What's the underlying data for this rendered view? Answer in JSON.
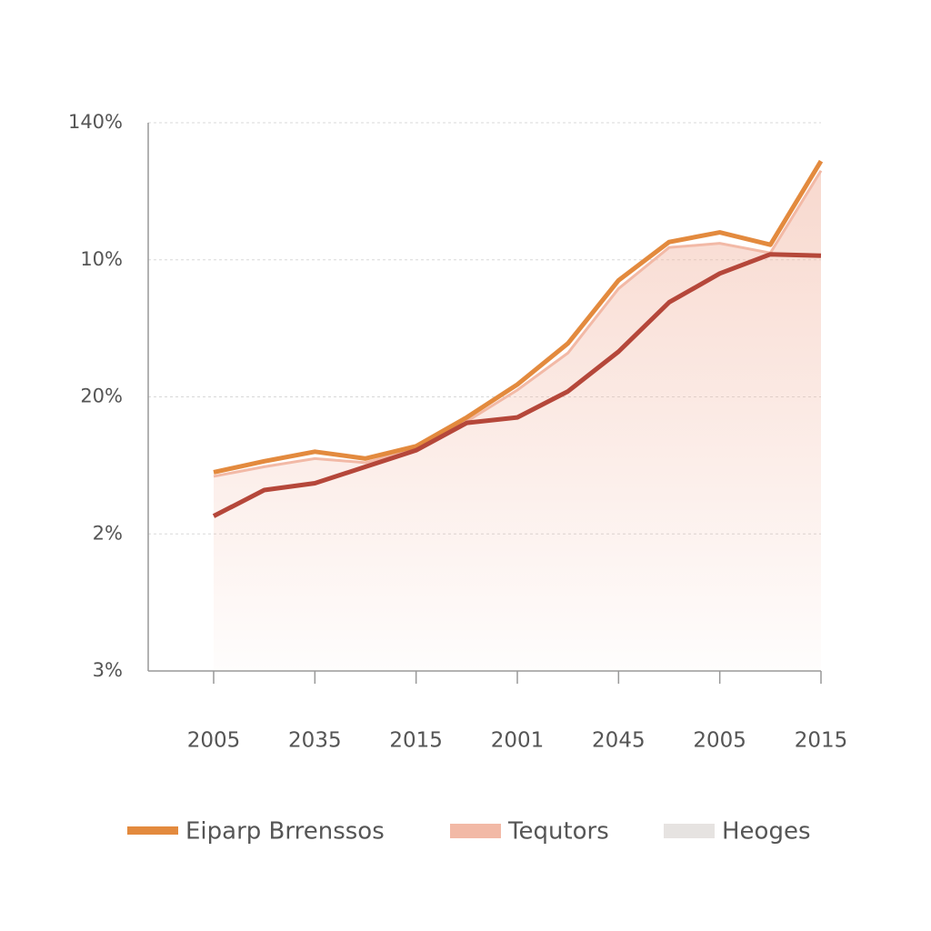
{
  "chart_data": {
    "type": "line",
    "categories": [
      "2005",
      null,
      "2035",
      null,
      "2015",
      null,
      "2001",
      null,
      "2045",
      null,
      "2005",
      null,
      "2015"
    ],
    "series": [
      {
        "name": "Eiparp Brrenssos",
        "color": "#e38a3e",
        "style": "line",
        "values": [
          1.45,
          1.53,
          1.6,
          1.55,
          1.64,
          1.85,
          2.09,
          2.39,
          2.85,
          3.13,
          3.2,
          3.11,
          3.72
        ]
      },
      {
        "name": "Tequtors",
        "color": "#f2b9a6",
        "style": "area",
        "values": [
          1.42,
          1.49,
          1.55,
          1.52,
          1.62,
          1.82,
          2.05,
          2.32,
          2.79,
          3.09,
          3.12,
          3.05,
          3.65
        ]
      },
      {
        "name": "Heoges",
        "color": "#b5473a",
        "legend_color": "#e6e3e1",
        "style": "line",
        "values": [
          1.13,
          1.32,
          1.37,
          1.49,
          1.61,
          1.81,
          1.85,
          2.04,
          2.33,
          2.69,
          2.9,
          3.04,
          3.03
        ]
      }
    ],
    "ylim": [
      0,
      4
    ],
    "yticks": [
      {
        "value": 0,
        "label": "3%"
      },
      {
        "value": 1,
        "label": "2%"
      },
      {
        "value": 2,
        "label": "20%"
      },
      {
        "value": 3,
        "label": "10%"
      },
      {
        "value": 4,
        "label": "140%"
      }
    ],
    "grid": true
  }
}
